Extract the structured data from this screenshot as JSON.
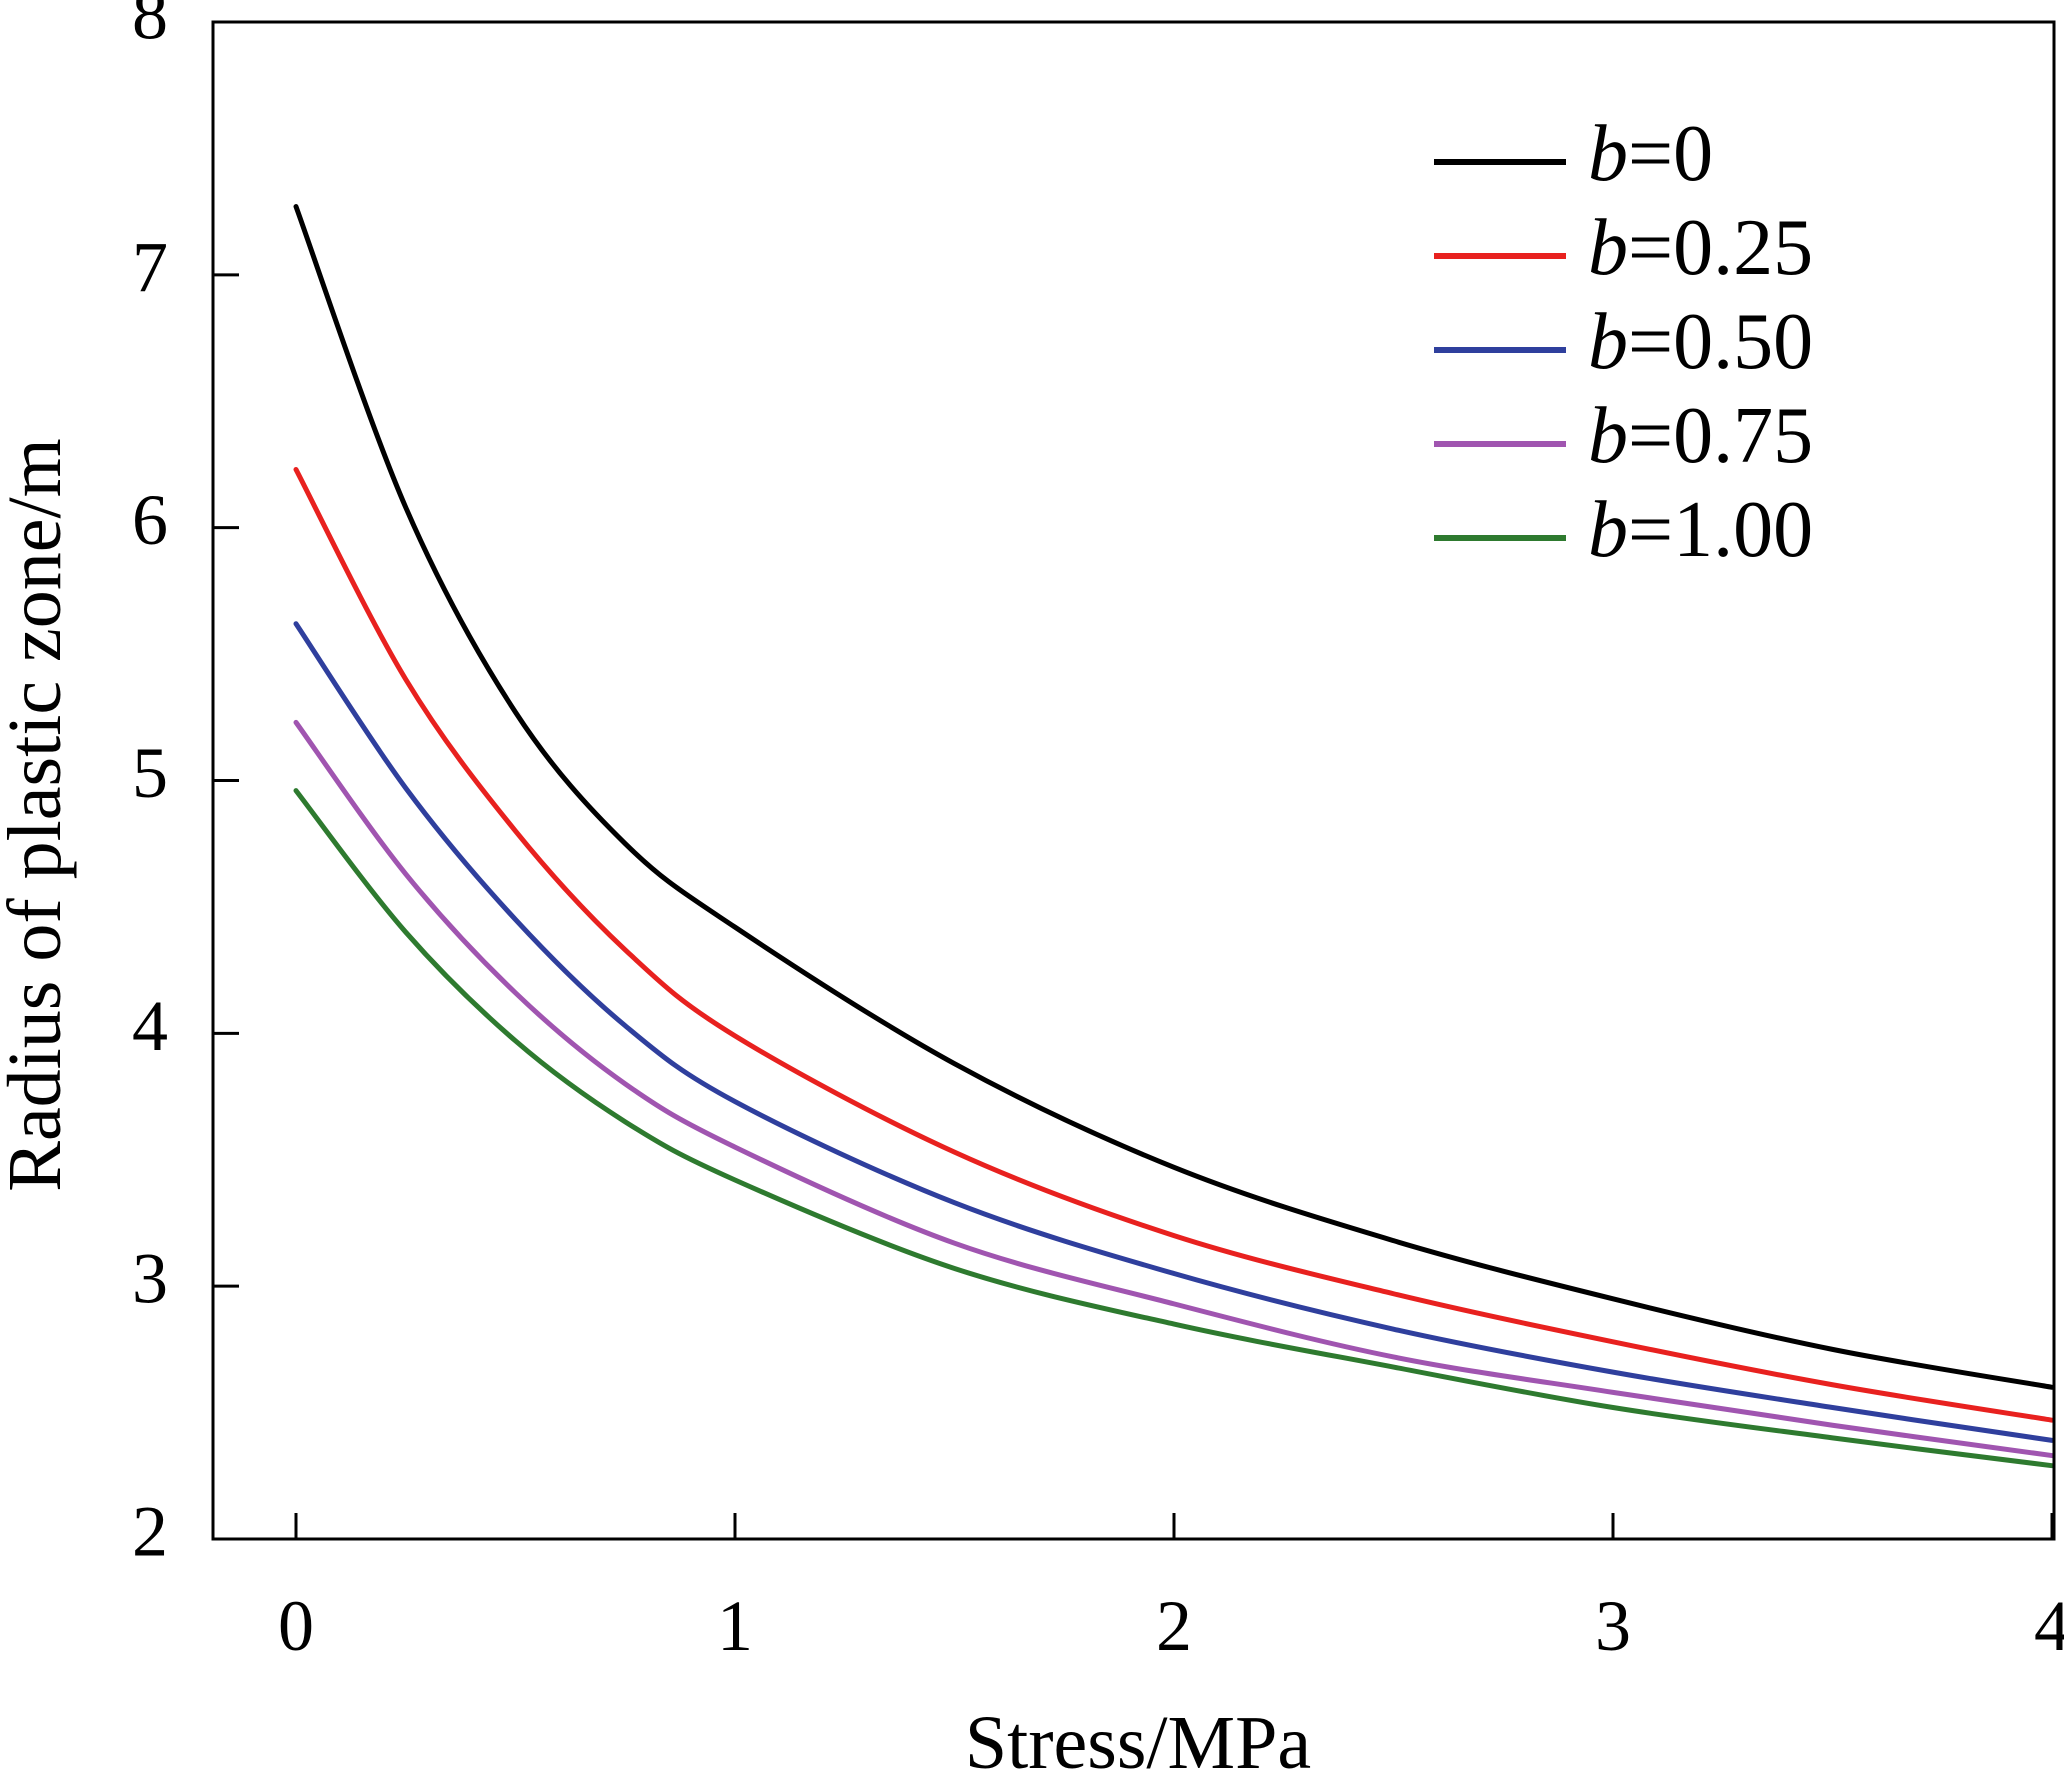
{
  "chart_data": {
    "type": "line",
    "xlabel": "Stress/MPa",
    "ylabel": "Radius of plastic zone/m",
    "xlim": [
      0,
      4
    ],
    "ylim": [
      2,
      8
    ],
    "xticks": [
      0,
      1,
      2,
      3,
      4
    ],
    "xtick_labels": [
      "0",
      "1",
      "2",
      "3",
      "4"
    ],
    "yticks": [
      2,
      3,
      4,
      5,
      6,
      7,
      8
    ],
    "ytick_labels": [
      "2",
      "3",
      "4",
      "5",
      "6",
      "7",
      "8"
    ],
    "grid": false,
    "legend_position": "top-right",
    "x": [
      0,
      0.25,
      0.5,
      0.75,
      1,
      1.5,
      2,
      2.5,
      3,
      3.5,
      4
    ],
    "series": [
      {
        "name": "b=0",
        "name_parts": [
          "b",
          "=0"
        ],
        "color": "#000000",
        "values": [
          7.27,
          6.08,
          5.27,
          4.75,
          4.42,
          3.88,
          3.47,
          3.18,
          2.95,
          2.75,
          2.6
        ]
      },
      {
        "name": "b=0.25",
        "name_parts": [
          "b",
          "=0.25"
        ],
        "color": "#e8211f",
        "values": [
          6.23,
          5.4,
          4.8,
          4.33,
          3.99,
          3.53,
          3.2,
          2.97,
          2.78,
          2.61,
          2.47
        ]
      },
      {
        "name": "b=0.50",
        "name_parts": [
          "b",
          "=0.50"
        ],
        "color": "#2f3f9d",
        "values": [
          5.62,
          4.97,
          4.45,
          4.03,
          3.73,
          3.33,
          3.05,
          2.83,
          2.66,
          2.52,
          2.39
        ]
      },
      {
        "name": "b=0.75",
        "name_parts": [
          "b",
          "=0.75"
        ],
        "color": "#a055b0",
        "values": [
          5.23,
          4.63,
          4.16,
          3.8,
          3.55,
          3.17,
          2.93,
          2.72,
          2.58,
          2.45,
          2.33
        ]
      },
      {
        "name": "b=1.00",
        "name_parts": [
          "b",
          "=1.00"
        ],
        "color": "#2e7a2f",
        "values": [
          4.96,
          4.4,
          3.97,
          3.65,
          3.42,
          3.07,
          2.85,
          2.68,
          2.52,
          2.4,
          2.29
        ]
      }
    ]
  }
}
